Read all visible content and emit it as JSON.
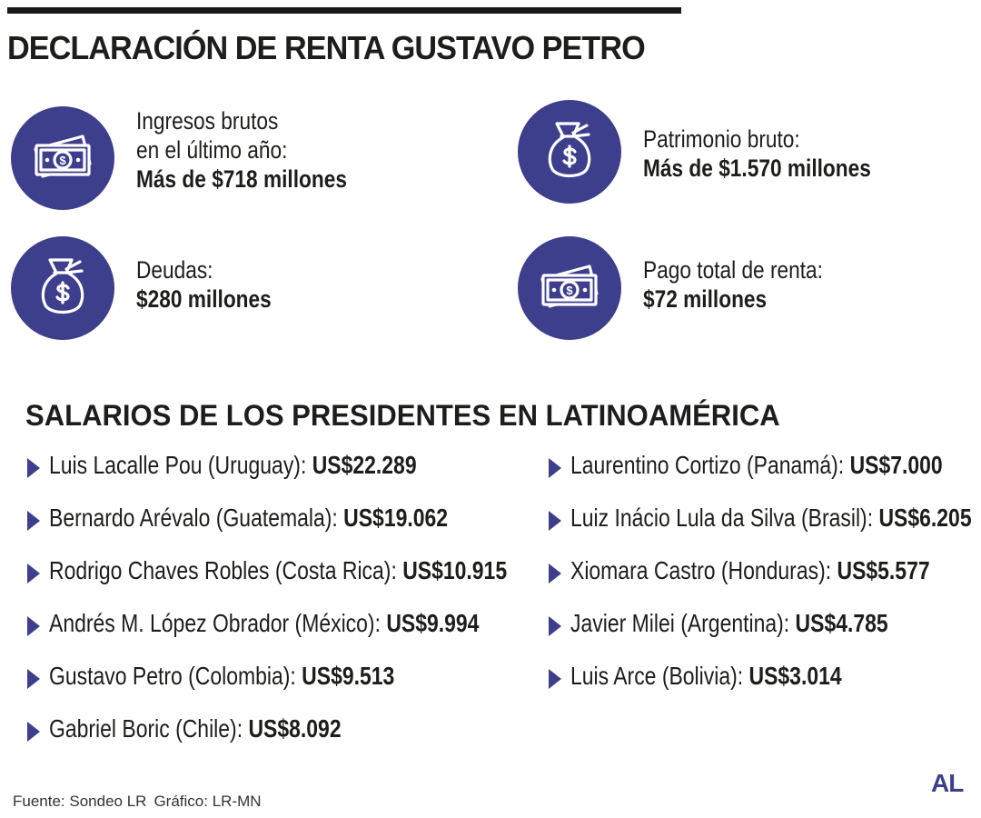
{
  "title": "DECLARACIÓN DE RENTA GUSTAVO PETRO",
  "stats": [
    {
      "label_1": "Ingresos brutos",
      "label_2": "en el último año:",
      "value": "Más de $718 millones",
      "icon": "money-bill-icon"
    },
    {
      "label_1": "Patrimonio bruto:",
      "value": "Más de $1.570 millones",
      "icon": "money-bag-icon"
    },
    {
      "label_1": "Deudas:",
      "value": "$280 millones",
      "icon": "money-bag-icon"
    },
    {
      "label_1": "Pago total de renta:",
      "value": "$72 millones",
      "icon": "money-bill-icon"
    }
  ],
  "salaries_title": "SALARIOS DE LOS PRESIDENTES EN LATINOAMÉRICA",
  "salaries_left": [
    {
      "name": "Luis Lacalle Pou (Uruguay):",
      "amount": "US$22.289"
    },
    {
      "name": "Bernardo Arévalo (Guatemala):",
      "amount": "US$19.062"
    },
    {
      "name": "Rodrigo Chaves Robles (Costa Rica):",
      "amount": "US$10.915"
    },
    {
      "name": "Andrés M. López Obrador (México):",
      "amount": "US$9.994"
    },
    {
      "name": "Gustavo Petro (Colombia):",
      "amount": "US$9.513"
    },
    {
      "name": "Gabriel Boric (Chile):",
      "amount": "US$8.092"
    }
  ],
  "salaries_right": [
    {
      "name": "Laurentino Cortizo (Panamá):",
      "amount": "US$7.000"
    },
    {
      "name": "Luiz Inácio Lula da Silva (Brasil):",
      "amount": "US$6.205"
    },
    {
      "name": "Xiomara Castro (Honduras):",
      "amount": "US$5.577"
    },
    {
      "name": "Javier Milei (Argentina):",
      "amount": "US$4.785"
    },
    {
      "name": "Luis Arce (Bolivia):",
      "amount": "US$3.014"
    }
  ],
  "footer": {
    "source": "Fuente: Sondeo LR",
    "graphic": "Gráfico: LR-MN"
  },
  "logo": "AL",
  "colors": {
    "accent": "#3d3e8c",
    "text": "#1d1d1b"
  }
}
